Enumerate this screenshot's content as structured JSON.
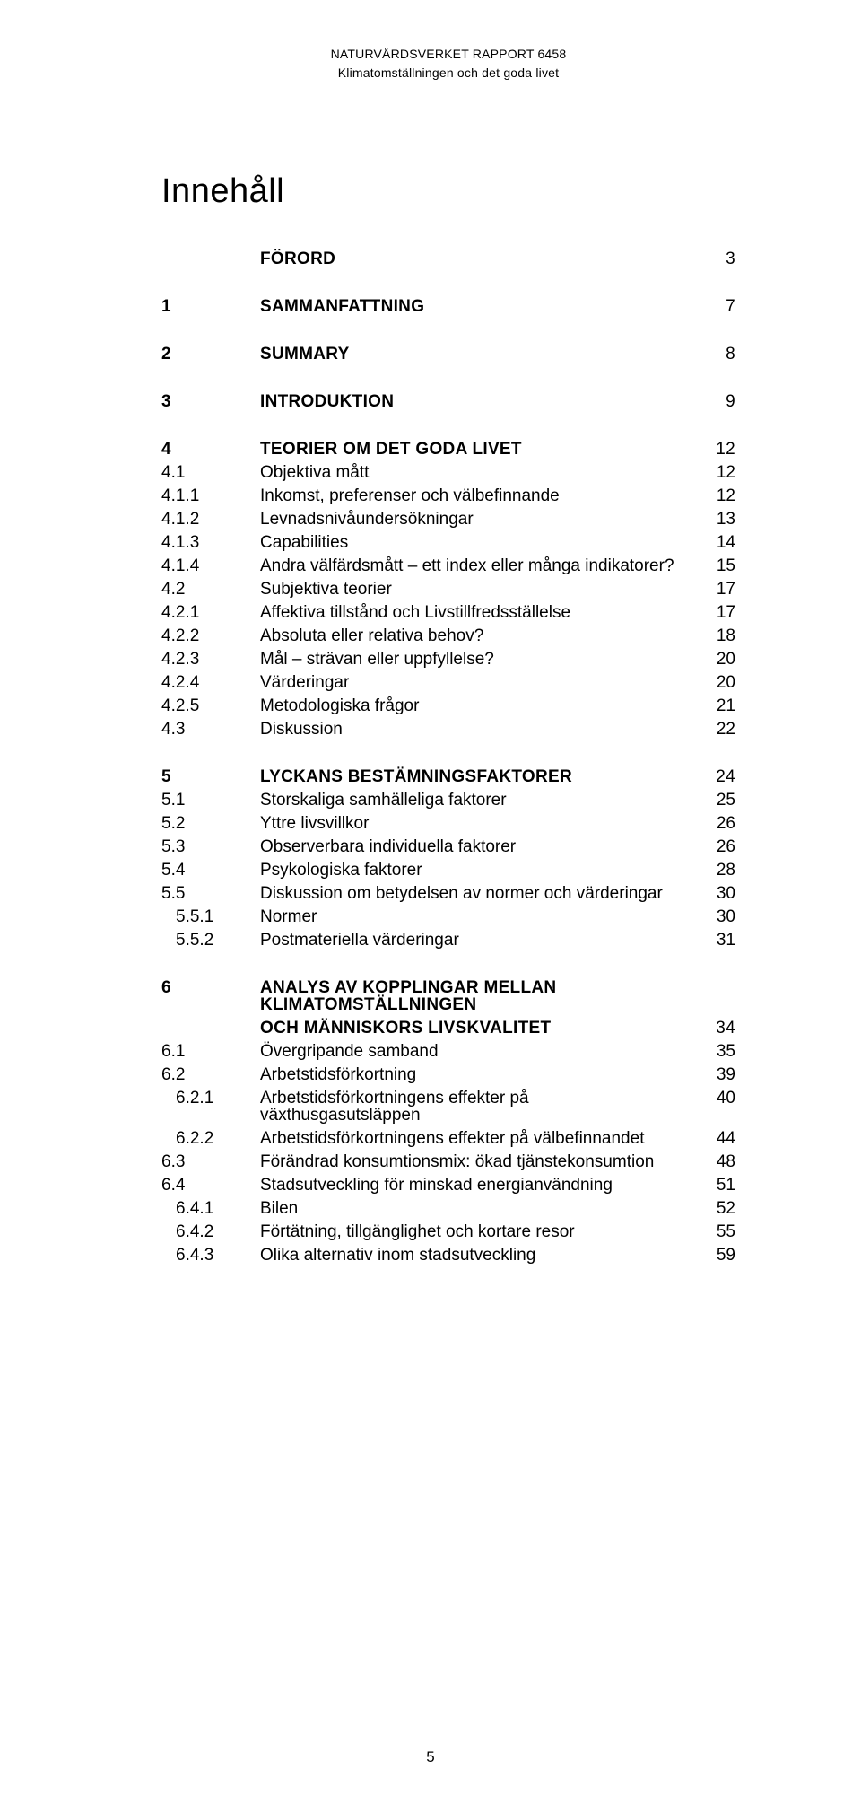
{
  "running_head": {
    "line1": "NATURVÅRDSVERKET RAPPORT 6458",
    "line2": "Klimatomställningen och det goda livet"
  },
  "toc_title": "Innehåll",
  "page_number": "5",
  "colors": {
    "background": "#ffffff",
    "text": "#000000"
  },
  "typography": {
    "body_font": "Helvetica Neue / Arial sans-serif",
    "title_size_pt": 28,
    "body_size_pt": 14,
    "running_head_size_pt": 10
  },
  "toc": [
    {
      "group": "forord",
      "rows": [
        {
          "level": 1,
          "num": "",
          "title": "Förord",
          "page": "3"
        }
      ]
    },
    {
      "group": "sammanfattning",
      "rows": [
        {
          "level": 1,
          "num": "1",
          "title": "Sammanfattning",
          "page": "7"
        }
      ]
    },
    {
      "group": "summary",
      "rows": [
        {
          "level": 1,
          "num": "2",
          "title": "Summary",
          "page": "8"
        }
      ]
    },
    {
      "group": "introduktion",
      "rows": [
        {
          "level": 1,
          "num": "3",
          "title": "Introduktion",
          "page": "9"
        }
      ]
    },
    {
      "group": "teorier",
      "rows": [
        {
          "level": 1,
          "num": "4",
          "title": "Teorier om det goda livet",
          "page": "12"
        },
        {
          "level": 2,
          "num": "4.1",
          "title": "Objektiva mått",
          "page": "12"
        },
        {
          "level": 2,
          "num": "4.1.1",
          "title": "Inkomst, preferenser och välbefinnande",
          "page": "12"
        },
        {
          "level": 2,
          "num": "4.1.2",
          "title": "Levnadsnivåundersökningar",
          "page": "13"
        },
        {
          "level": 2,
          "num": "4.1.3",
          "title": "Capabilities",
          "page": "14"
        },
        {
          "level": 2,
          "num": "4.1.4",
          "title": "Andra välfärdsmått – ett index eller många indikatorer?",
          "page": "15"
        },
        {
          "level": 2,
          "num": "4.2",
          "title": "Subjektiva teorier",
          "page": "17"
        },
        {
          "level": 2,
          "num": "4.2.1",
          "title": "Affektiva tillstånd och Livstillfredsställelse",
          "page": "17"
        },
        {
          "level": 2,
          "num": "4.2.2",
          "title": "Absoluta eller relativa behov?",
          "page": "18"
        },
        {
          "level": 2,
          "num": "4.2.3",
          "title": "Mål – strävan eller uppfyllelse?",
          "page": "20"
        },
        {
          "level": 2,
          "num": "4.2.4",
          "title": "Värderingar",
          "page": "20"
        },
        {
          "level": 2,
          "num": "4.2.5",
          "title": "Metodologiska frågor",
          "page": "21"
        },
        {
          "level": 2,
          "num": "4.3",
          "title": "Diskussion",
          "page": "22"
        }
      ]
    },
    {
      "group": "lyckans",
      "rows": [
        {
          "level": 1,
          "num": "5",
          "title": "Lyckans bestämningsfaktorer",
          "page": "24"
        },
        {
          "level": 2,
          "num": "5.1",
          "title": "Storskaliga samhälleliga faktorer",
          "page": "25"
        },
        {
          "level": 2,
          "num": "5.2",
          "title": "Yttre livsvillkor",
          "page": "26"
        },
        {
          "level": 2,
          "num": "5.3",
          "title": "Observerbara individuella faktorer",
          "page": "26"
        },
        {
          "level": 2,
          "num": "5.4",
          "title": "Psykologiska faktorer",
          "page": "28"
        },
        {
          "level": 2,
          "num": "5.5",
          "title": "Diskussion om betydelsen av normer och värderingar",
          "page": "30"
        },
        {
          "level": 3,
          "num": "5.5.1",
          "title": "Normer",
          "page": "30"
        },
        {
          "level": 3,
          "num": "5.5.2",
          "title": "Postmateriella värderingar",
          "page": "31"
        }
      ]
    },
    {
      "group": "analys",
      "rows": [
        {
          "level": 1,
          "num": "6",
          "title": "Analys av kopplingar mellan klimatomställningen",
          "page": ""
        },
        {
          "level": 1,
          "num": "",
          "title": "och människors livskvalitet",
          "page": "34",
          "cont": true
        },
        {
          "level": 2,
          "num": "6.1",
          "title": "Övergripande samband",
          "page": "35"
        },
        {
          "level": 2,
          "num": "6.2",
          "title": "Arbetstidsförkortning",
          "page": "39"
        },
        {
          "level": 3,
          "num": "6.2.1",
          "title": "Arbetstidsförkortningens effekter på växthusgasutsläppen",
          "page": "40"
        },
        {
          "level": 3,
          "num": "6.2.2",
          "title": "Arbetstidsförkortningens effekter på välbefinnandet",
          "page": "44"
        },
        {
          "level": 2,
          "num": "6.3",
          "title": "Förändrad konsumtionsmix: ökad tjänstekonsumtion",
          "page": "48"
        },
        {
          "level": 2,
          "num": "6.4",
          "title": "Stadsutveckling för minskad energianvändning",
          "page": "51"
        },
        {
          "level": 3,
          "num": "6.4.1",
          "title": "Bilen",
          "page": "52"
        },
        {
          "level": 3,
          "num": "6.4.2",
          "title": "Förtätning, tillgänglighet och kortare resor",
          "page": "55"
        },
        {
          "level": 3,
          "num": "6.4.3",
          "title": "Olika alternativ inom stadsutveckling",
          "page": "59"
        }
      ]
    }
  ]
}
